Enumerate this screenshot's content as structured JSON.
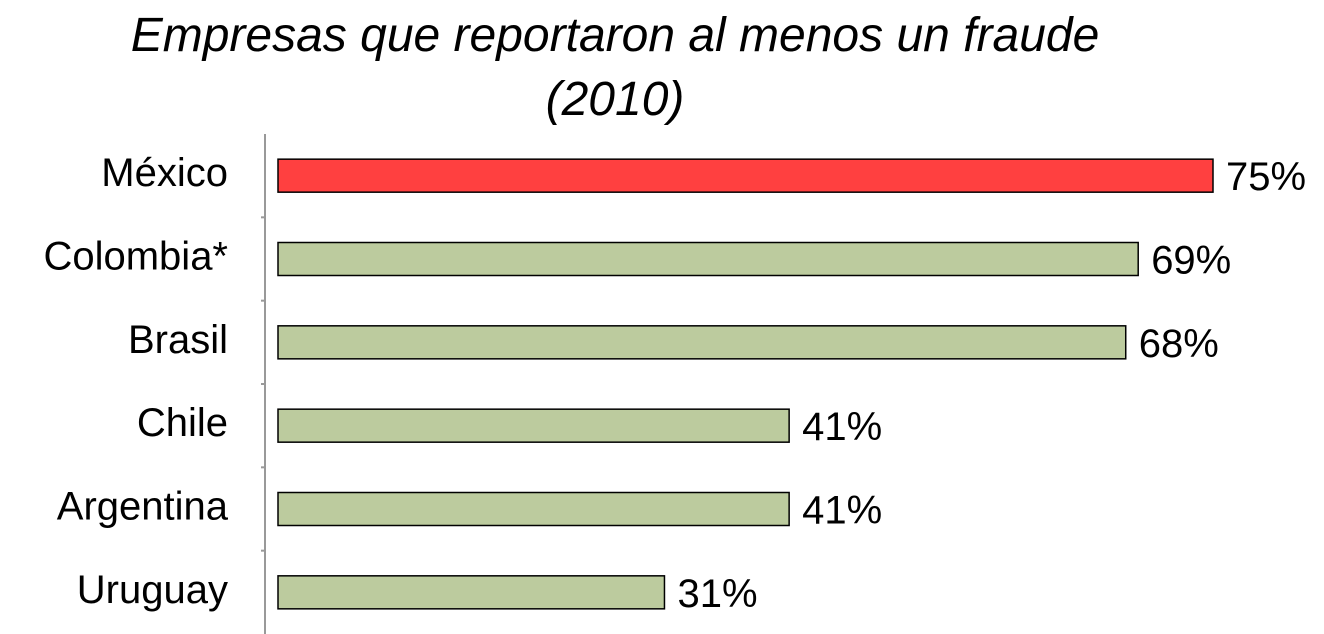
{
  "chart_data": {
    "type": "bar",
    "orientation": "horizontal",
    "title": "Empresas que reportaron al menos un fraude (2010)",
    "categories": [
      "México",
      "Colombia*",
      "Brasil",
      "Chile",
      "Argentina",
      "Uruguay"
    ],
    "values": [
      75,
      69,
      68,
      41,
      41,
      31
    ],
    "value_labels": [
      "75%",
      "69%",
      "68%",
      "41%",
      "41%",
      "31%"
    ],
    "colors": [
      "#ff4040",
      "#bccb9e",
      "#bccb9e",
      "#bccb9e",
      "#bccb9e",
      "#bccb9e"
    ]
  }
}
